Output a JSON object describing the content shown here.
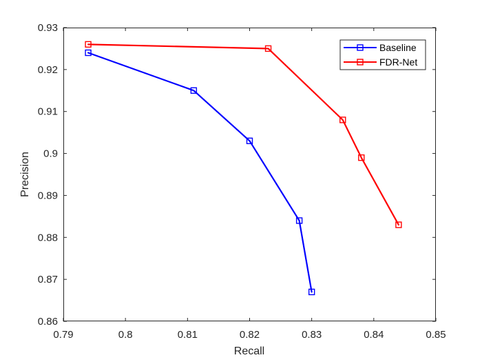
{
  "chart_data": {
    "type": "line",
    "title": "",
    "xlabel": "Recall",
    "ylabel": "Precision",
    "xlim": [
      0.79,
      0.85
    ],
    "ylim": [
      0.86,
      0.93
    ],
    "xticks": [
      0.79,
      0.8,
      0.81,
      0.82,
      0.83,
      0.84,
      0.85
    ],
    "yticks": [
      0.86,
      0.87,
      0.88,
      0.89,
      0.9,
      0.91,
      0.92,
      0.93
    ],
    "xtick_labels": [
      "0.79",
      "0.8",
      "0.81",
      "0.82",
      "0.83",
      "0.84",
      "0.85"
    ],
    "ytick_labels": [
      "0.86",
      "0.87",
      "0.88",
      "0.89",
      "0.9",
      "0.91",
      "0.92",
      "0.93"
    ],
    "grid": false,
    "legend_position": "top-right",
    "marker": "square",
    "series": [
      {
        "name": "Baseline",
        "color": "#0000ff",
        "x": [
          0.794,
          0.811,
          0.82,
          0.828,
          0.83
        ],
        "y": [
          0.924,
          0.915,
          0.903,
          0.884,
          0.867
        ]
      },
      {
        "name": "FDR-Net",
        "color": "#ff0000",
        "x": [
          0.794,
          0.823,
          0.835,
          0.838,
          0.844
        ],
        "y": [
          0.926,
          0.925,
          0.908,
          0.899,
          0.883
        ]
      }
    ]
  }
}
